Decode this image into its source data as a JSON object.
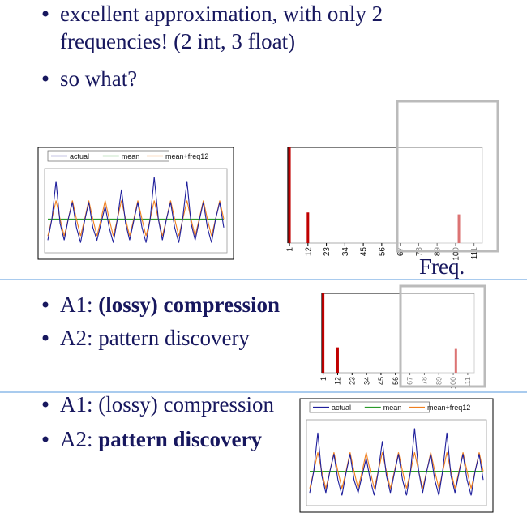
{
  "sections": [
    {
      "bullets": [
        [
          [
            {
              "text": "excellent approximation, with only 2"
            }
          ],
          [
            {
              "text": "frequencies! (2 int, 3 float)"
            }
          ]
        ],
        [
          [
            {
              "text": "so what?"
            }
          ]
        ]
      ]
    },
    {
      "bullets": [
        [
          [
            {
              "text": "A1: "
            },
            {
              "text": "(lossy) compression",
              "bold": true
            }
          ]
        ],
        [
          [
            {
              "text": "A2: pattern discovery"
            }
          ]
        ]
      ]
    },
    {
      "bullets": [
        [
          [
            {
              "text": "A1: (lossy) compression"
            }
          ]
        ],
        [
          [
            {
              "text": "A2: "
            },
            {
              "text": "pattern discovery",
              "bold": true
            }
          ]
        ]
      ]
    }
  ],
  "timeseries": {
    "type": "line",
    "ylim": [
      0,
      1
    ],
    "series": [
      {
        "name": "actual",
        "color": "#1f1f9c",
        "values": [
          0.15,
          0.4,
          0.85,
          0.35,
          0.15,
          0.4,
          0.6,
          0.3,
          0.12,
          0.38,
          0.6,
          0.3,
          0.15,
          0.35,
          0.55,
          0.3,
          0.12,
          0.4,
          0.75,
          0.35,
          0.15,
          0.38,
          0.6,
          0.3,
          0.12,
          0.4,
          0.9,
          0.4,
          0.15,
          0.4,
          0.6,
          0.3,
          0.12,
          0.42,
          0.85,
          0.35,
          0.15,
          0.38,
          0.6,
          0.3,
          0.12,
          0.4,
          0.6,
          0.3
        ]
      },
      {
        "name": "mean",
        "color": "#2a9a2a",
        "values": [
          0.4,
          0.4,
          0.4,
          0.4,
          0.4,
          0.4,
          0.4,
          0.4,
          0.4,
          0.4,
          0.4,
          0.4,
          0.4,
          0.4,
          0.4,
          0.4,
          0.4,
          0.4,
          0.4,
          0.4,
          0.4,
          0.4,
          0.4,
          0.4,
          0.4,
          0.4,
          0.4,
          0.4,
          0.4,
          0.4,
          0.4,
          0.4,
          0.4,
          0.4,
          0.4,
          0.4,
          0.4,
          0.4,
          0.4,
          0.4,
          0.4,
          0.4,
          0.4,
          0.4
        ]
      },
      {
        "name": "mean+freq12",
        "color": "#f08020",
        "values": [
          0.2,
          0.4,
          0.62,
          0.4,
          0.2,
          0.4,
          0.62,
          0.4,
          0.2,
          0.4,
          0.62,
          0.4,
          0.2,
          0.4,
          0.62,
          0.4,
          0.2,
          0.4,
          0.62,
          0.4,
          0.2,
          0.4,
          0.62,
          0.4,
          0.2,
          0.4,
          0.62,
          0.4,
          0.2,
          0.4,
          0.62,
          0.4,
          0.2,
          0.4,
          0.62,
          0.4,
          0.2,
          0.4,
          0.62,
          0.4,
          0.2,
          0.4,
          0.62,
          0.4
        ]
      }
    ]
  },
  "spectrum": {
    "type": "bar",
    "xlim": [
      0,
      116
    ],
    "ylim": [
      0,
      1
    ],
    "xticks": [
      1,
      12,
      23,
      34,
      45,
      56,
      67,
      78,
      89,
      100,
      111
    ],
    "x": [
      1,
      12,
      102
    ],
    "values": [
      1,
      0.32,
      0.3
    ],
    "color": "#c00000",
    "caption": "Freq."
  }
}
